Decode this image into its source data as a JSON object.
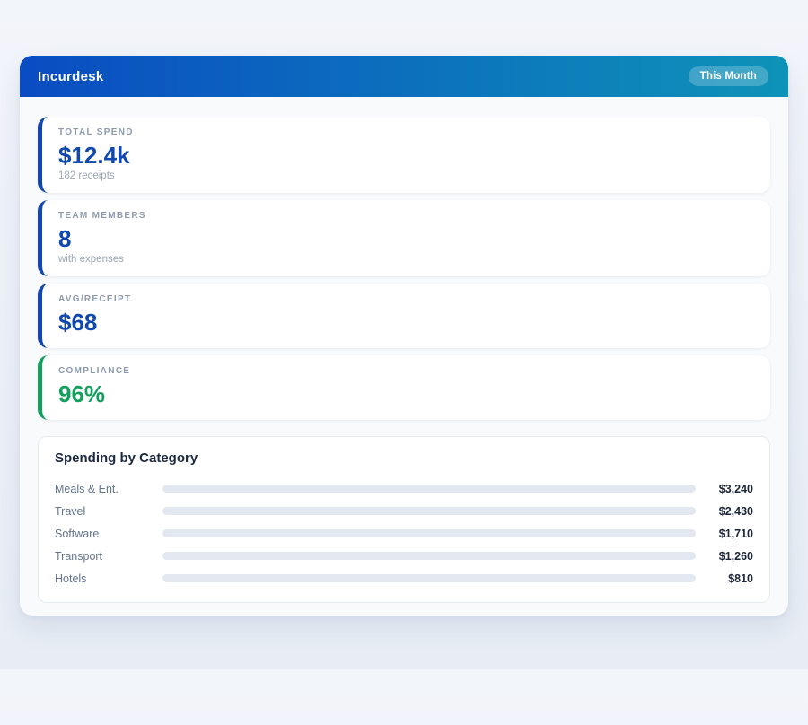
{
  "app": {
    "title": "Incurdesk",
    "period_badge": "This Month",
    "header_gradient_from": "#0a4cc2",
    "header_gradient_to": "#0e93b8"
  },
  "stats": [
    {
      "label": "TOTAL SPEND",
      "value": "$12.4k",
      "sub": "182 receipts",
      "accent": "#1148b0"
    },
    {
      "label": "TEAM MEMBERS",
      "value": "8",
      "sub": "with expenses",
      "accent": "#1148b0"
    },
    {
      "label": "AVG/RECEIPT",
      "value": "$68",
      "accent": "#1148b0"
    },
    {
      "label": "COMPLIANCE",
      "value": "96%",
      "accent": "#13a05e"
    }
  ],
  "chart_data": {
    "type": "bar",
    "orientation": "horizontal",
    "title": "Spending by Category",
    "categories": [
      "Meals & Ent.",
      "Travel",
      "Software",
      "Transport",
      "Hotels"
    ],
    "values": [
      3240,
      2430,
      1710,
      1260,
      810
    ],
    "value_labels": [
      "$3,240",
      "$2,430",
      "$1,710",
      "$1,260",
      "$810"
    ],
    "max": 4500,
    "track_color": "#e3e8f0",
    "bar_colors": [
      {
        "from": "#0d47b3",
        "to": "#0d9aa6"
      },
      {
        "from": "#0c45b0",
        "to": "#0b82e2"
      },
      {
        "from": "#0f9e56",
        "to": "#1f8d8a"
      },
      {
        "from": "#7c2ede",
        "to": "#a438ec"
      },
      {
        "from": "#0f7f9b",
        "to": "#17b9dd"
      }
    ]
  }
}
